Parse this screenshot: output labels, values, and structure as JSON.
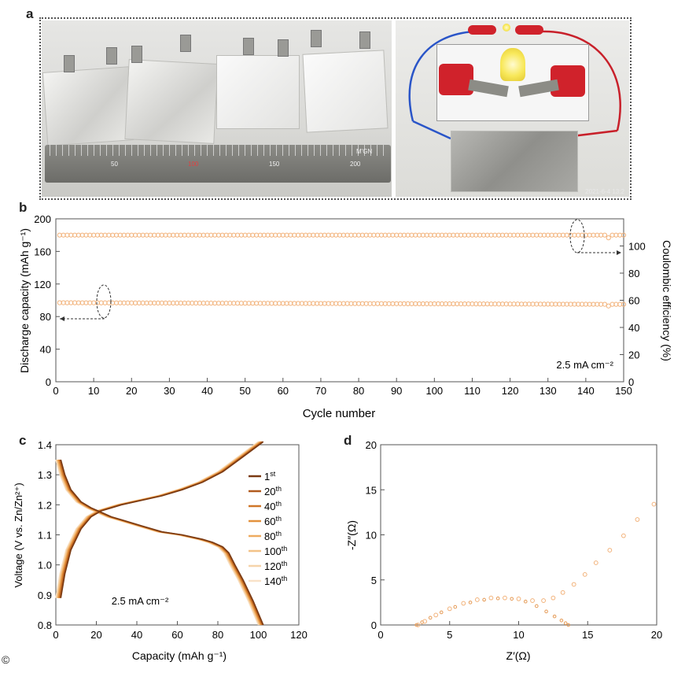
{
  "panel_labels": {
    "a": "a",
    "b": "b",
    "c": "c",
    "d": "d"
  },
  "photo": {
    "ruler_labels": [
      "50",
      "100",
      "150",
      "200"
    ],
    "ruler_brand": "M'GN",
    "timestamp": "2021-6-4 13:2"
  },
  "copyright_symbol": "©",
  "colors": {
    "marker": "#f2b27a",
    "marker_dark": "#e59a55",
    "arrow": "#333333"
  },
  "chart_data": [
    {
      "id": "b",
      "type": "scatter",
      "xlabel": "Cycle number",
      "ylabel": "Discharge capacity (mAh g⁻¹)",
      "ylabel_right": "Coulombic efficiency (%)",
      "xlim": [
        0,
        150
      ],
      "ylim": [
        0,
        200
      ],
      "ylim_right": [
        0,
        120
      ],
      "xticks": [
        "0",
        "10",
        "20",
        "30",
        "40",
        "50",
        "60",
        "70",
        "80",
        "90",
        "100",
        "110",
        "120",
        "130",
        "140",
        "150"
      ],
      "yticks": [
        "0",
        "40",
        "80",
        "120",
        "160",
        "200"
      ],
      "yticks_right": [
        "0",
        "20",
        "40",
        "60",
        "80",
        "100"
      ],
      "annotation": "2.5 mA cm⁻²",
      "series": [
        {
          "axis": "left",
          "x_range": [
            1,
            150
          ],
          "y_start": 97,
          "y_end": 95,
          "y_dip_at_146": 93
        },
        {
          "axis": "right",
          "x_range": [
            1,
            150
          ],
          "y_value": 108,
          "y_dip_at_146": 106
        }
      ]
    },
    {
      "id": "c",
      "type": "line",
      "xlabel": "Capacity (mAh g⁻¹)",
      "ylabel": "Voltage (V vs. Zn/Zn²⁺)",
      "xlim": [
        0,
        120
      ],
      "ylim": [
        0.8,
        1.4
      ],
      "xticks": [
        "0",
        "20",
        "40",
        "60",
        "80",
        "100",
        "120"
      ],
      "yticks": [
        "0.8",
        "0.9",
        "1.0",
        "1.1",
        "1.2",
        "1.3",
        "1.4"
      ],
      "annotation": "2.5 mA cm⁻²",
      "legend_position": "right",
      "legend": [
        {
          "num": "1",
          "suffix": "st",
          "color": "#7a3a12"
        },
        {
          "num": "20",
          "suffix": "th",
          "color": "#b05a1e"
        },
        {
          "num": "40",
          "suffix": "th",
          "color": "#cf7628"
        },
        {
          "num": "60",
          "suffix": "th",
          "color": "#e3913d"
        },
        {
          "num": "80",
          "suffix": "th",
          "color": "#eeab60"
        },
        {
          "num": "100",
          "suffix": "th",
          "color": "#f3c287"
        },
        {
          "num": "120",
          "suffix": "th",
          "color": "#f6d4aa"
        },
        {
          "num": "140",
          "suffix": "th",
          "color": "#f9e2c8"
        }
      ],
      "charge_curve": {
        "x": [
          0,
          2,
          5,
          10,
          15,
          20,
          25,
          30,
          40,
          50,
          60,
          70,
          80,
          90,
          100
        ],
        "y": [
          0.89,
          0.97,
          1.05,
          1.12,
          1.16,
          1.18,
          1.19,
          1.2,
          1.215,
          1.23,
          1.25,
          1.275,
          1.31,
          1.36,
          1.41
        ]
      },
      "discharge_curve": {
        "x": [
          0,
          2,
          5,
          10,
          15,
          20,
          25,
          30,
          40,
          50,
          60,
          70,
          75,
          80,
          83,
          86,
          90,
          95,
          100
        ],
        "y": [
          1.35,
          1.3,
          1.25,
          1.21,
          1.19,
          1.175,
          1.16,
          1.15,
          1.13,
          1.11,
          1.1,
          1.085,
          1.075,
          1.06,
          1.04,
          1.0,
          0.95,
          0.88,
          0.8
        ]
      }
    },
    {
      "id": "d",
      "type": "scatter",
      "xlabel": "Z′(Ω)",
      "ylabel": "-Z″(Ω)",
      "xlim": [
        0,
        20
      ],
      "ylim": [
        0,
        20
      ],
      "xticks": [
        "0",
        "5",
        "10",
        "15",
        "20"
      ],
      "yticks": [
        "0",
        "5",
        "10",
        "15",
        "20"
      ],
      "series": [
        {
          "name_hidden": true,
          "x": [
            2.6,
            3.0,
            3.6,
            4.4,
            5.4,
            6.5,
            7.5,
            8.5,
            9.5,
            10.5,
            11.3,
            12.0,
            12.6,
            13.1,
            13.4,
            13.6
          ],
          "y": [
            0.0,
            0.3,
            0.8,
            1.4,
            2.0,
            2.5,
            2.8,
            2.95,
            2.9,
            2.6,
            2.1,
            1.5,
            0.95,
            0.5,
            0.2,
            0.0
          ]
        },
        {
          "name_hidden": true,
          "x": [
            2.7,
            3.2,
            4.0,
            5.0,
            6.0,
            7.0,
            8.0,
            9.0,
            10.0,
            11.0,
            11.8,
            12.5,
            13.2,
            14.0,
            14.8,
            15.6,
            16.6,
            17.6,
            18.6,
            19.8
          ],
          "y": [
            0.0,
            0.4,
            1.1,
            1.8,
            2.4,
            2.8,
            3.0,
            3.0,
            2.9,
            2.7,
            2.7,
            3.0,
            3.6,
            4.5,
            5.6,
            6.9,
            8.3,
            9.9,
            11.7,
            13.4
          ]
        }
      ]
    }
  ]
}
